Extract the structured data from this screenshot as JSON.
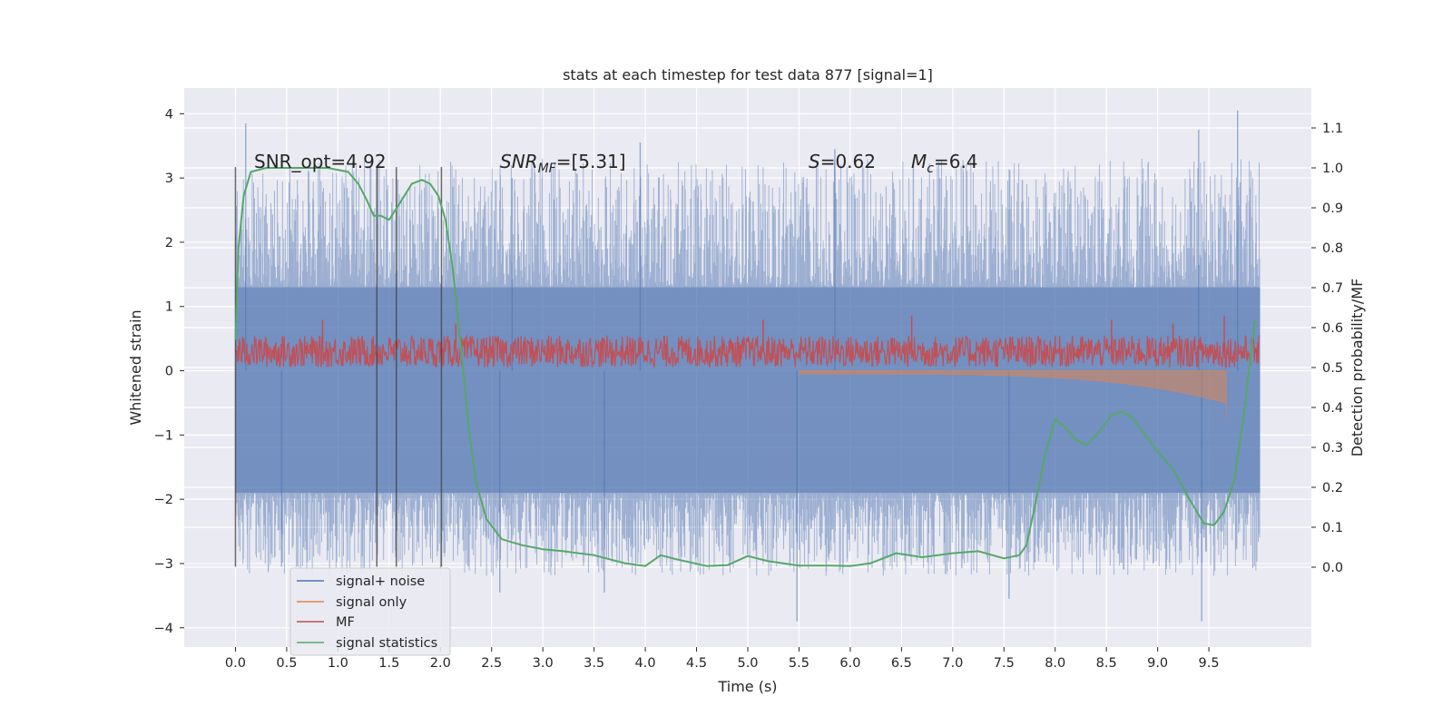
{
  "chart_data": {
    "type": "line",
    "title": "stats at each timestep for test data 877 [signal=1]",
    "xlabel": "Time (s)",
    "ylabel": "Whitened strain",
    "ylabel_right": "Detection probability/MF",
    "xlim": [
      -0.5,
      10.5
    ],
    "ylim": [
      -4.3,
      4.4
    ],
    "ylim_right": [
      -0.2,
      1.2
    ],
    "x_ticks": [
      "0.0",
      "0.5",
      "1.0",
      "1.5",
      "2.0",
      "2.5",
      "3.0",
      "3.5",
      "4.0",
      "4.5",
      "5.0",
      "5.5",
      "6.0",
      "6.5",
      "7.0",
      "7.5",
      "8.0",
      "8.5",
      "9.0",
      "9.5"
    ],
    "y_ticks": [
      "4",
      "3",
      "2",
      "1",
      "0",
      "−1",
      "−2",
      "−3",
      "−4"
    ],
    "y_ticks_right": [
      "1.1",
      "1.0",
      "0.9",
      "0.8",
      "0.7",
      "0.6",
      "0.5",
      "0.4",
      "0.3",
      "0.2",
      "0.1",
      "0.0"
    ],
    "grid": true,
    "legend_position": "lower-left",
    "annotations": {
      "snr_opt": "SNR_opt=4.92",
      "snr_mf_label": "SNR",
      "snr_mf_sub": "MF",
      "snr_mf_value": "=[5.31]",
      "s_label": "S",
      "s_value": "=0.62",
      "mc_label": "M",
      "mc_sub": "c",
      "mc_value": "=6.4"
    },
    "vertical_markers_x": [
      0.0,
      1.38,
      1.57,
      2.01
    ],
    "series": [
      {
        "name": "signal+ noise",
        "color": "#4c72b0",
        "axis": "left",
        "band": {
          "typical_low": -1.9,
          "typical_high": 1.3,
          "min": -3.9,
          "max": 4.05
        },
        "peaks": [
          [
            0.1,
            3.85
          ],
          [
            2.7,
            3.0
          ],
          [
            3.95,
            3.55
          ],
          [
            5.85,
            3.45
          ],
          [
            9.4,
            3.75
          ],
          [
            9.78,
            4.05
          ],
          [
            0.45,
            -3.05
          ],
          [
            2.58,
            -3.45
          ],
          [
            3.6,
            -3.45
          ],
          [
            5.48,
            -3.9
          ],
          [
            7.55,
            -3.55
          ],
          [
            9.43,
            -3.9
          ]
        ]
      },
      {
        "name": "signal only",
        "color": "#dd8452",
        "axis": "left",
        "chirp_start": 5.5,
        "chirp_end": 9.67,
        "amplitude_end": -0.75
      },
      {
        "name": "MF",
        "color": "#c44e52",
        "axis": "right",
        "band": {
          "low": 0.5,
          "high": 0.58
        },
        "spikes": [
          [
            0.85,
            0.62
          ],
          [
            2.15,
            0.61
          ],
          [
            5.15,
            0.62
          ],
          [
            6.6,
            0.63
          ],
          [
            8.55,
            0.62
          ],
          [
            9.15,
            0.61
          ],
          [
            9.65,
            0.63
          ]
        ]
      },
      {
        "name": "signal statistics",
        "color": "#55a868",
        "axis": "right",
        "x": [
          0.0,
          0.03,
          0.08,
          0.15,
          0.3,
          0.6,
          0.9,
          1.1,
          1.2,
          1.28,
          1.35,
          1.42,
          1.5,
          1.6,
          1.72,
          1.82,
          1.9,
          1.98,
          2.05,
          2.12,
          2.2,
          2.28,
          2.35,
          2.45,
          2.6,
          2.8,
          3.0,
          3.2,
          3.5,
          3.8,
          4.0,
          4.15,
          4.3,
          4.6,
          4.8,
          5.0,
          5.2,
          5.5,
          5.8,
          6.0,
          6.2,
          6.45,
          6.7,
          7.0,
          7.25,
          7.5,
          7.65,
          7.72,
          7.8,
          7.9,
          8.0,
          8.1,
          8.2,
          8.3,
          8.4,
          8.55,
          8.65,
          8.75,
          9.0,
          9.15,
          9.3,
          9.45,
          9.55,
          9.65,
          9.75,
          9.85,
          9.95
        ],
        "y": [
          0.57,
          0.8,
          0.93,
          0.99,
          1.0,
          1.0,
          1.0,
          0.99,
          0.96,
          0.92,
          0.88,
          0.88,
          0.87,
          0.91,
          0.96,
          0.97,
          0.96,
          0.93,
          0.87,
          0.75,
          0.55,
          0.34,
          0.21,
          0.12,
          0.07,
          0.055,
          0.045,
          0.04,
          0.03,
          0.01,
          0.003,
          0.03,
          0.02,
          0.003,
          0.005,
          0.028,
          0.015,
          0.004,
          0.004,
          0.003,
          0.01,
          0.035,
          0.025,
          0.035,
          0.04,
          0.022,
          0.03,
          0.055,
          0.15,
          0.28,
          0.37,
          0.35,
          0.32,
          0.305,
          0.33,
          0.38,
          0.39,
          0.375,
          0.29,
          0.245,
          0.175,
          0.11,
          0.105,
          0.14,
          0.22,
          0.4,
          0.62
        ]
      }
    ]
  }
}
